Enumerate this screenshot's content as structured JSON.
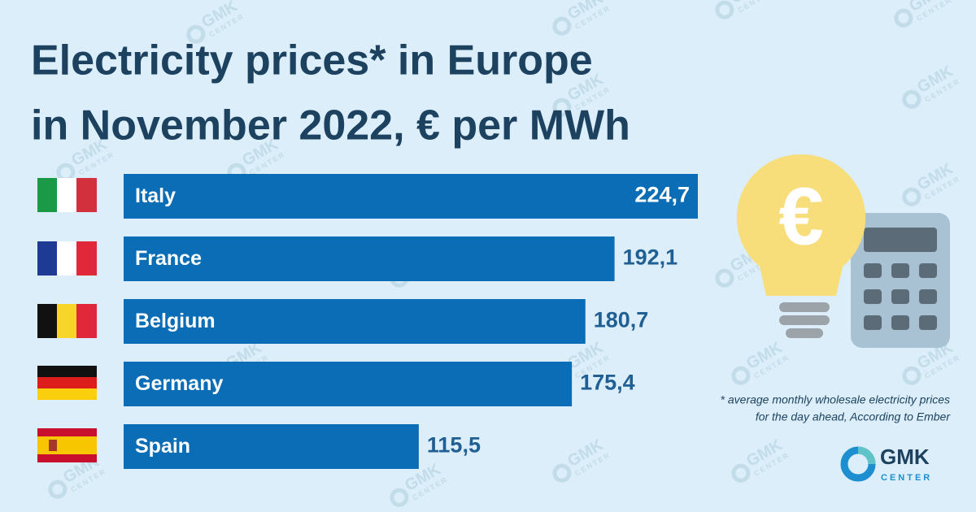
{
  "chart_data": {
    "type": "bar",
    "orientation": "horizontal",
    "title": [
      "Electricity prices* in Europe",
      "in November 2022, € per MWh"
    ],
    "categories": [
      "Italy",
      "France",
      "Belgium",
      "Germany",
      "Spain"
    ],
    "values": [
      224.7,
      192.1,
      180.7,
      175.4,
      115.5
    ],
    "value_labels": [
      "224,7",
      "192,1",
      "180,7",
      "175,4",
      "115,5"
    ],
    "color": "#0b6db5",
    "footnote": [
      "* average monthly wholesale electricity prices",
      "for the day ahead, According to Ember"
    ],
    "logo": [
      "GMK",
      "CENTER"
    ]
  }
}
